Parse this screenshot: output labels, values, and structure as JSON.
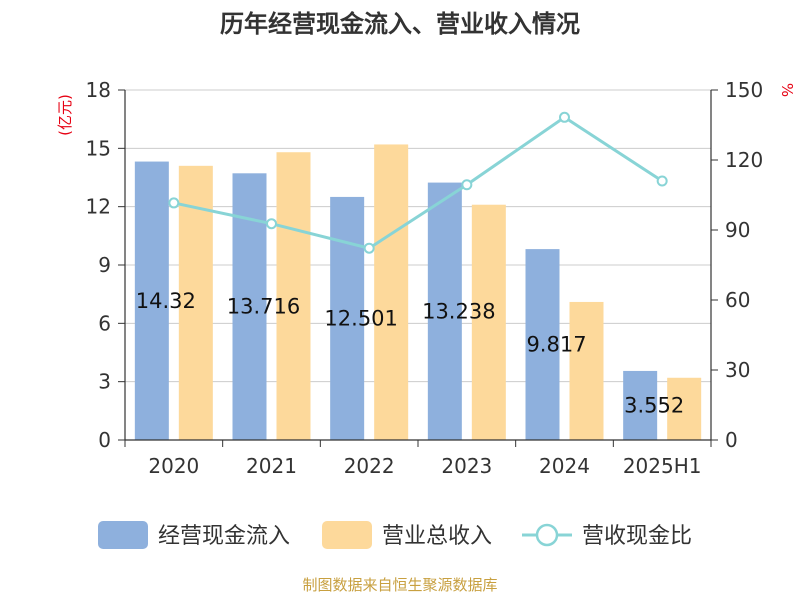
{
  "chart_data": {
    "type": "bar",
    "title": "历年经营现金流入、营业收入情况",
    "categories": [
      "2020",
      "2021",
      "2022",
      "2023",
      "2024",
      "2025H1"
    ],
    "series": [
      {
        "name": "经营现金流入",
        "type": "bar",
        "axis": "left",
        "color": "#8eb0dd",
        "values": [
          14.32,
          13.716,
          12.501,
          13.238,
          9.817,
          3.552
        ],
        "labels": [
          "14.32",
          "13.716",
          "12.501",
          "13.238",
          "9.817",
          "3.552"
        ]
      },
      {
        "name": "营业总收入",
        "type": "bar",
        "axis": "left",
        "color": "#fdd99b",
        "values": [
          14.1,
          14.8,
          15.2,
          12.1,
          7.1,
          3.2
        ]
      },
      {
        "name": "营收现金比",
        "type": "line",
        "axis": "right",
        "color": "#88d4d6",
        "values": [
          101.6,
          92.7,
          82.2,
          109.4,
          138.3,
          111.0
        ]
      }
    ],
    "left_axis": {
      "unit": "(亿元)",
      "ylim": [
        0,
        18
      ],
      "ticks": [
        0,
        3,
        6,
        9,
        12,
        15,
        18
      ]
    },
    "right_axis": {
      "unit": "%",
      "ylim": [
        0,
        150
      ],
      "ticks": [
        0,
        30,
        60,
        90,
        120,
        150
      ]
    },
    "grid": true,
    "legend_position": "bottom"
  },
  "source": "制图数据来自恒生聚源数据库"
}
